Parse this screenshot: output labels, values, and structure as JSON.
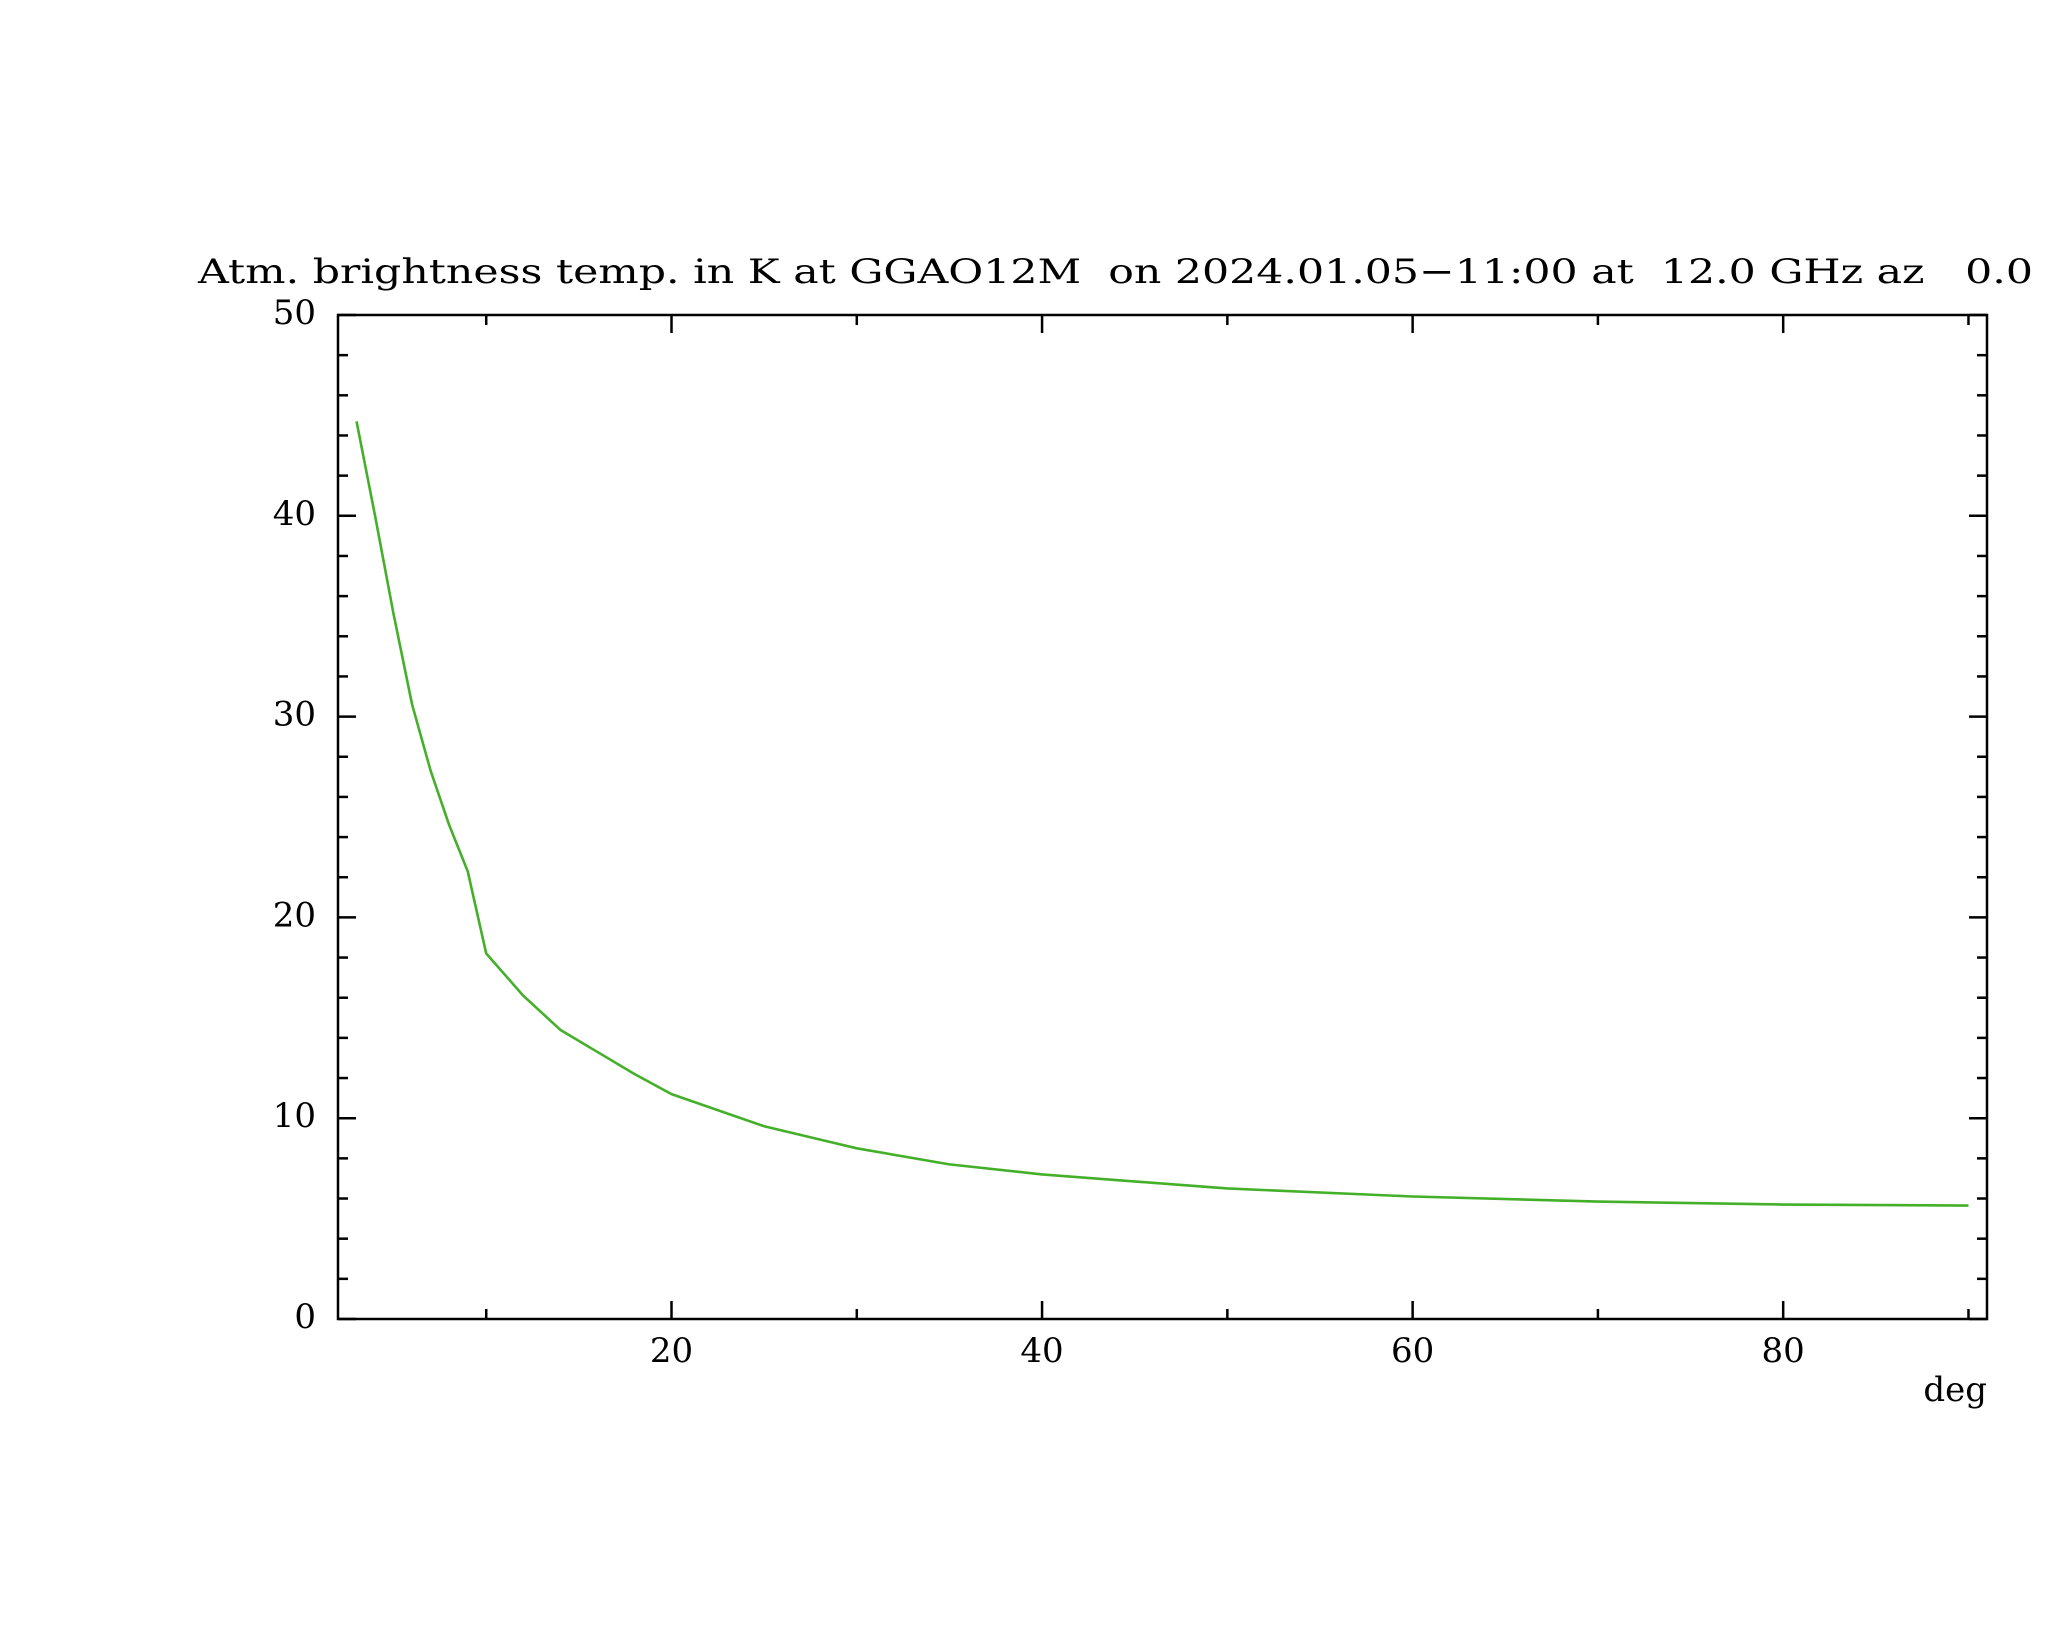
{
  "chart_data": {
    "type": "line",
    "title": "Atm. brightness temp. in K at GGAO12M  on 2024.01.05−11:00 at  12.0 GHz az   0.0",
    "x_label": "deg",
    "x": [
      3,
      4,
      5,
      6,
      7,
      8,
      9,
      10,
      12,
      14,
      16,
      18,
      20,
      25,
      30,
      35,
      40,
      50,
      60,
      70,
      80,
      90
    ],
    "series": [
      {
        "color": "#44b02a",
        "values": [
          44.7,
          40.0,
          35.1,
          30.6,
          27.3,
          24.6,
          22.3,
          18.2,
          16.1,
          14.4,
          13.3,
          12.2,
          11.2,
          9.6,
          8.5,
          7.7,
          7.2,
          6.5,
          6.1,
          5.85,
          5.7,
          5.65
        ]
      }
    ],
    "xlim": [
      2,
      91
    ],
    "ylim": [
      0,
      50
    ],
    "xticks": [
      20,
      40,
      60,
      80
    ],
    "yticks": [
      0,
      10,
      20,
      30,
      40,
      50
    ]
  }
}
